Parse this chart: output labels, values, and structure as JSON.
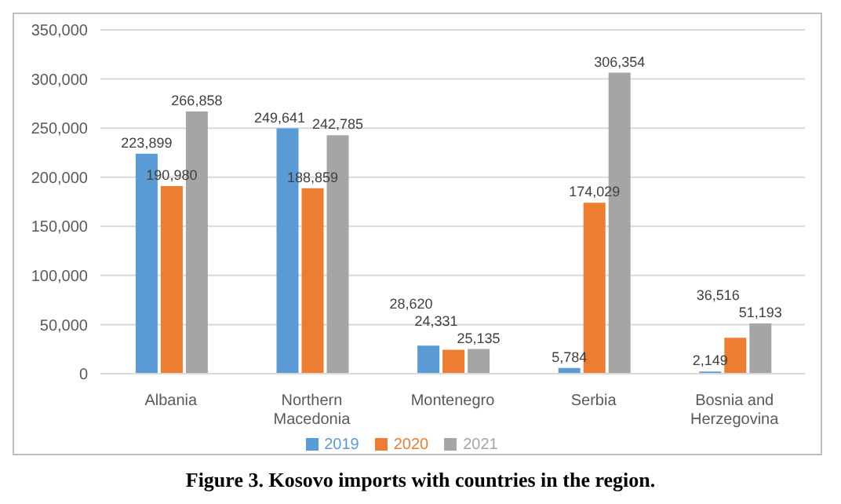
{
  "chart_data": {
    "type": "bar",
    "categories": [
      "Albania",
      "Northern Macedonia",
      "Montenegro",
      "Serbia",
      "Bosnia and Herzegovina"
    ],
    "series": [
      {
        "name": "2019",
        "color": "#5b9bd5",
        "values": [
          223899,
          249641,
          28620,
          5784,
          2149
        ],
        "value_labels": [
          "223,899",
          "249,641",
          "28,620",
          "5,784",
          "2,149"
        ]
      },
      {
        "name": "2020",
        "color": "#ed7d31",
        "values": [
          190980,
          188859,
          24331,
          174029,
          36516
        ],
        "value_labels": [
          "190,980",
          "188,859",
          "24,331",
          "174,029",
          "36,516"
        ]
      },
      {
        "name": "2021",
        "color": "#a5a5a5",
        "values": [
          266858,
          242785,
          25135,
          306354,
          51193
        ],
        "value_labels": [
          "266,858",
          "242,785",
          "25,135",
          "306,354",
          "51,193"
        ]
      }
    ],
    "ylim": [
      0,
      350000
    ],
    "yticks": [
      {
        "value": 0,
        "label": "0"
      },
      {
        "value": 50000,
        "label": "50,000"
      },
      {
        "value": 100000,
        "label": "100,000"
      },
      {
        "value": 150000,
        "label": "150,000"
      },
      {
        "value": 200000,
        "label": "200,000"
      },
      {
        "value": 250000,
        "label": "250,000"
      },
      {
        "value": 300000,
        "label": "300,000"
      },
      {
        "value": 350000,
        "label": "350,000"
      }
    ],
    "grid": "y",
    "legend": "bottom",
    "annotations": [
      "Figure 3. Kosovo imports with countries in the region."
    ]
  }
}
